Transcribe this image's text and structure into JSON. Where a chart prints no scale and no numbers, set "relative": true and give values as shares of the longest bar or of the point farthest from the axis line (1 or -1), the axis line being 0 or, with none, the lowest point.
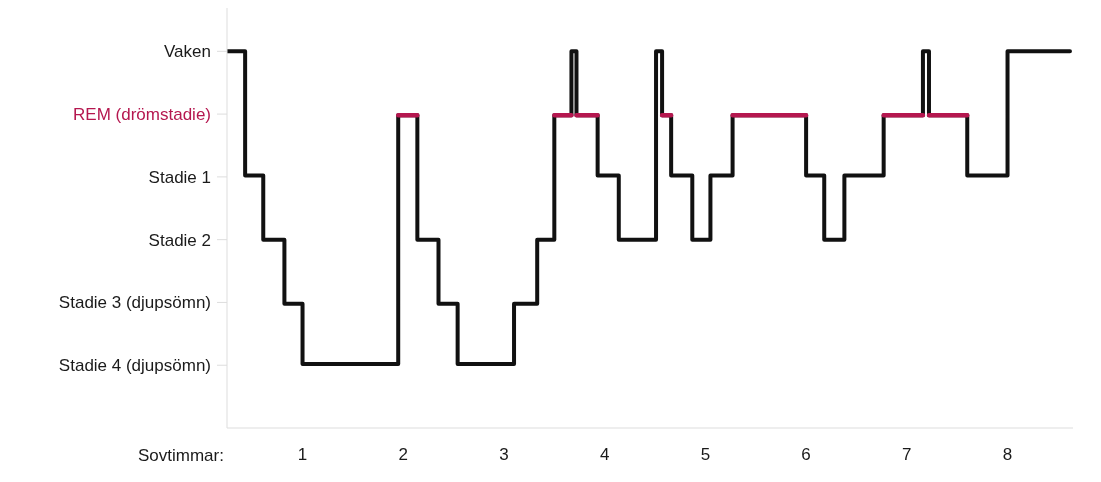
{
  "chart_data": {
    "type": "step",
    "relative": true,
    "xlabel": "Sovtimmar:",
    "xlim": [
      0.25,
      8.65
    ],
    "xticks": [
      1,
      2,
      3,
      4,
      5,
      6,
      7,
      8
    ],
    "line_style": "solid",
    "marker": "none",
    "annotations": [
      "Stadie 4 (djupsömn)",
      "Stadie 3 (djupsömn)",
      "Stadie 2",
      "Stadie 1",
      "REM (drömstadie)",
      "Vaken"
    ],
    "series": [
      {
        "color": "#111111",
        "x": [
          0.25,
          0.43,
          0.61,
          0.82,
          1.0,
          1.95,
          2.14,
          2.35,
          2.54,
          3.1,
          3.33,
          3.5,
          3.67,
          3.72,
          3.93,
          4.14,
          4.51,
          4.57,
          4.66,
          4.87,
          5.05,
          5.27,
          6.0,
          6.18,
          6.38,
          6.77,
          7.16,
          7.22,
          7.6,
          8.0,
          8.62
        ],
        "values": [
          1,
          0.67,
          0.5,
          0.33,
          0.17,
          0.83,
          0.5,
          0.33,
          0.17,
          0.33,
          0.5,
          0.83,
          1,
          0.83,
          0.67,
          0.5,
          1,
          0.83,
          0.67,
          0.5,
          0.67,
          0.83,
          0.67,
          0.5,
          0.67,
          0.83,
          1,
          0.83,
          0.67,
          1,
          1
        ]
      },
      {
        "color": "#b5174f",
        "x": [
          1.95,
          2.14,
          2.15,
          3.5,
          3.67,
          3.7,
          3.72,
          3.93,
          4.0,
          4.57,
          4.66,
          4.7,
          5.27,
          6.0,
          6.05,
          6.77,
          7.16,
          7.2,
          7.22,
          7.6
        ],
        "values": [
          0.83,
          0.83,
          null,
          0.83,
          0.83,
          null,
          0.83,
          0.83,
          null,
          0.83,
          0.83,
          null,
          0.83,
          0.83,
          null,
          0.83,
          0.83,
          null,
          0.83,
          0.83
        ]
      }
    ]
  }
}
